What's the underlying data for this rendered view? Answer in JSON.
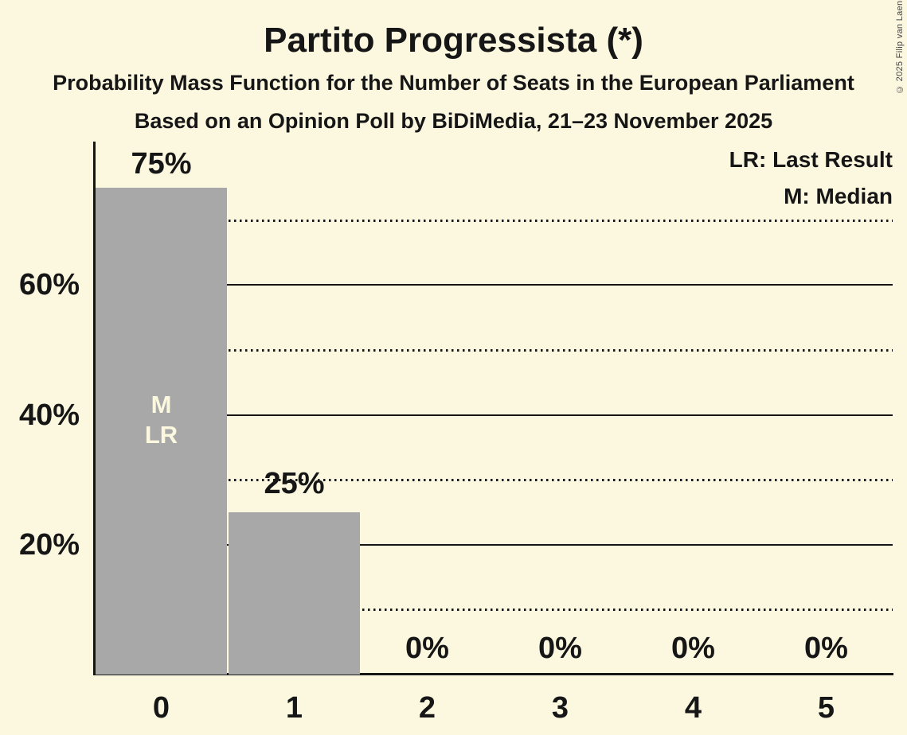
{
  "header": {
    "title": "Partito Progressista (*)",
    "subtitle1": "Probability Mass Function for the Number of Seats in the European Parliament",
    "subtitle2": "Based on an Opinion Poll by BiDiMedia, 21–23 November 2025"
  },
  "legend": {
    "last_result": "LR: Last Result",
    "median": "M: Median"
  },
  "annotations": {
    "median_label": "M",
    "last_result_label": "LR"
  },
  "copyright": "© 2025 Filip van Laenen",
  "colors": {
    "background": "#FCF8DF",
    "bar": "#A8A8A8",
    "ink": "#161616",
    "bar_annotation_text": "#FCF8DF"
  },
  "chart_data": {
    "type": "bar",
    "title": "Partito Progressista (*)",
    "categories": [
      "0",
      "1",
      "2",
      "3",
      "4",
      "5"
    ],
    "values": [
      75,
      25,
      0,
      0,
      0,
      0
    ],
    "value_labels": [
      "75%",
      "25%",
      "0%",
      "0%",
      "0%",
      "0%"
    ],
    "yticks": [
      {
        "value": 20,
        "label": "20%"
      },
      {
        "value": 40,
        "label": "40%"
      },
      {
        "value": 60,
        "label": "60%"
      }
    ],
    "ylim": [
      0,
      82
    ],
    "gridlines": {
      "solid_at": [
        20,
        40,
        60
      ],
      "dotted_at": [
        10,
        30,
        50,
        70
      ]
    },
    "median_at_category": "0",
    "last_result_at_category": "0",
    "legend_position": "top-right",
    "grid": true
  }
}
